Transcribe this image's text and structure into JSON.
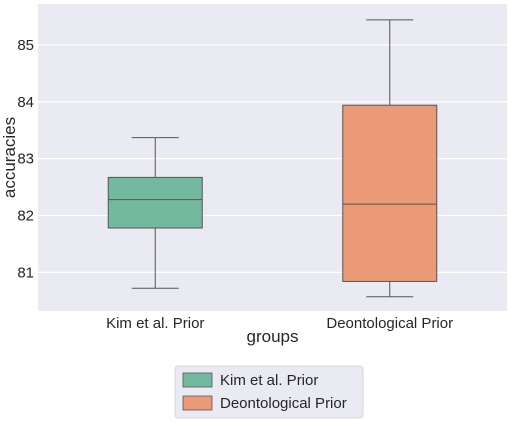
{
  "chart_data": {
    "type": "box",
    "title": "",
    "xlabel": "groups",
    "ylabel": "accuracies",
    "categories": [
      "Kim et al. Prior",
      "Deontological Prior"
    ],
    "boxes": [
      {
        "name": "Kim et al. Prior",
        "whisker_low": 80.72,
        "q1": 81.78,
        "median": 82.28,
        "q3": 82.67,
        "whisker_high": 83.37,
        "color": "#73b9a0"
      },
      {
        "name": "Deontological Prior",
        "whisker_low": 80.57,
        "q1": 80.84,
        "median": 82.2,
        "q3": 83.94,
        "whisker_high": 85.44,
        "color": "#eb9a77"
      }
    ],
    "yticks": [
      81,
      82,
      83,
      84,
      85
    ],
    "ylim": [
      80.32,
      85.72
    ],
    "grid": true,
    "legend": {
      "placement": "bottom-center",
      "entries": [
        {
          "label": "Kim et al. Prior",
          "color": "#73b9a0"
        },
        {
          "label": "Deontological Prior",
          "color": "#eb9a77"
        }
      ]
    },
    "colors": {
      "background": "#eaeaf2",
      "grid": "#ffffff",
      "edge": "#555555"
    }
  }
}
